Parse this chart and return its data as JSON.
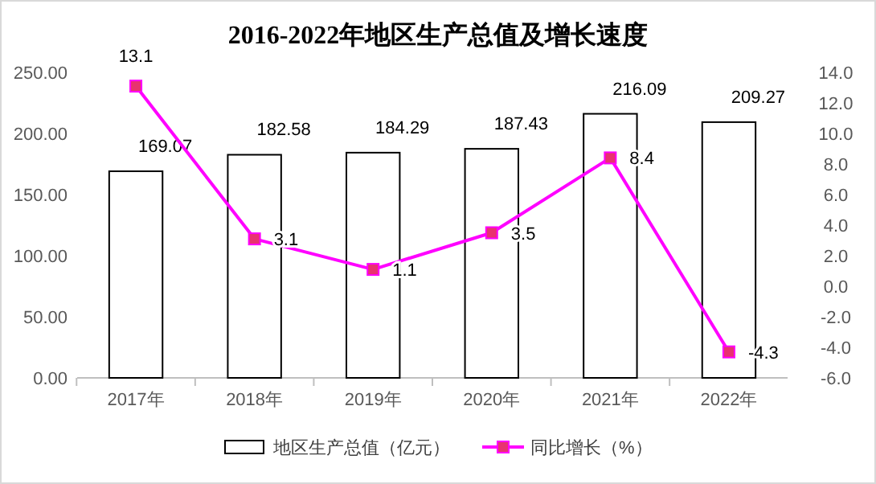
{
  "chart_data": {
    "type": "bar",
    "title": "2016-2022年地区生产总值及增长速度",
    "categories": [
      "2017年",
      "2018年",
      "2019年",
      "2020年",
      "2021年",
      "2022年"
    ],
    "series": [
      {
        "name": "地区生产总值（亿元）",
        "color": "#ffffff",
        "values": [
          169.07,
          182.58,
          184.29,
          187.43,
          216.09,
          209.27
        ]
      },
      {
        "name": "同比增长（%）",
        "type": "line",
        "axis": "y2",
        "color": "#ff00ff",
        "marker": "square",
        "values": [
          13.1,
          3.1,
          1.1,
          3.5,
          8.4,
          -4.3
        ]
      }
    ],
    "ylim": [
      0,
      250
    ],
    "yticks": [
      {
        "value": 0,
        "label": "0.00"
      },
      {
        "value": 50,
        "label": "50.00"
      },
      {
        "value": 100,
        "label": "100.00"
      },
      {
        "value": 150,
        "label": "150.00"
      },
      {
        "value": 200,
        "label": "200.00"
      },
      {
        "value": 250,
        "label": "250.00"
      }
    ],
    "y2lim": [
      -6,
      14
    ],
    "y2ticks": [
      {
        "value": -6,
        "label": "-6.0"
      },
      {
        "value": -4,
        "label": "-4.0"
      },
      {
        "value": -2,
        "label": "-2.0"
      },
      {
        "value": 0,
        "label": "0.0"
      },
      {
        "value": 2,
        "label": "2.0"
      },
      {
        "value": 4,
        "label": "4.0"
      },
      {
        "value": 6,
        "label": "6.0"
      },
      {
        "value": 8,
        "label": "8.0"
      },
      {
        "value": 10,
        "label": "10.0"
      },
      {
        "value": 12,
        "label": "12.0"
      },
      {
        "value": 14,
        "label": "14.0"
      }
    ],
    "data_labels": true,
    "legend": "bottom"
  }
}
